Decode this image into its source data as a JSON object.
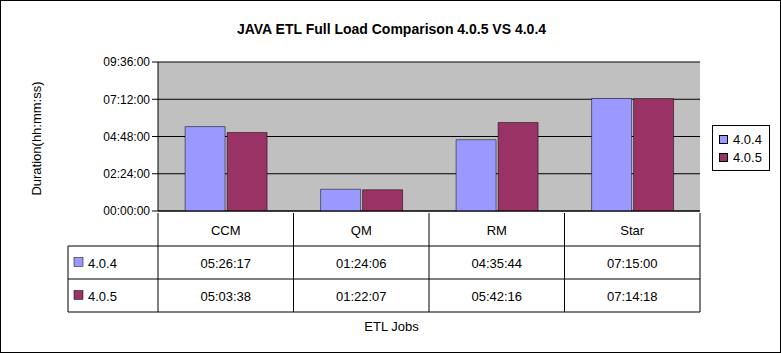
{
  "chart_data": {
    "type": "bar",
    "title": "JAVA ETL Full Load Comparison 4.0.5 VS 4.0.4",
    "y_label": "Duration(hh:mm:ss)",
    "x_label": "ETL Jobs",
    "categories": [
      "CCM",
      "QM",
      "RM",
      "Star"
    ],
    "series": [
      {
        "name": "4.0.4",
        "color": "#9999FF",
        "values": [
          19577,
          5046,
          16544,
          26100
        ],
        "value_labels": [
          "05:26:17",
          "01:24:06",
          "04:35:44",
          "07:15:00"
        ]
      },
      {
        "name": "4.0.5",
        "color": "#993366",
        "values": [
          18218,
          4927,
          20536,
          26058
        ],
        "value_labels": [
          "05:03:38",
          "01:22:07",
          "05:42:16",
          "07:14:18"
        ]
      }
    ],
    "ylim": [
      0,
      34560
    ],
    "yticks": [
      {
        "value": 0,
        "label": "00:00:00"
      },
      {
        "value": 8640,
        "label": "02:24:00"
      },
      {
        "value": 17280,
        "label": "04:48:00"
      },
      {
        "value": 25920,
        "label": "07:12:00"
      },
      {
        "value": 34560,
        "label": "09:36:00"
      }
    ],
    "grid": true,
    "legend": "right"
  }
}
